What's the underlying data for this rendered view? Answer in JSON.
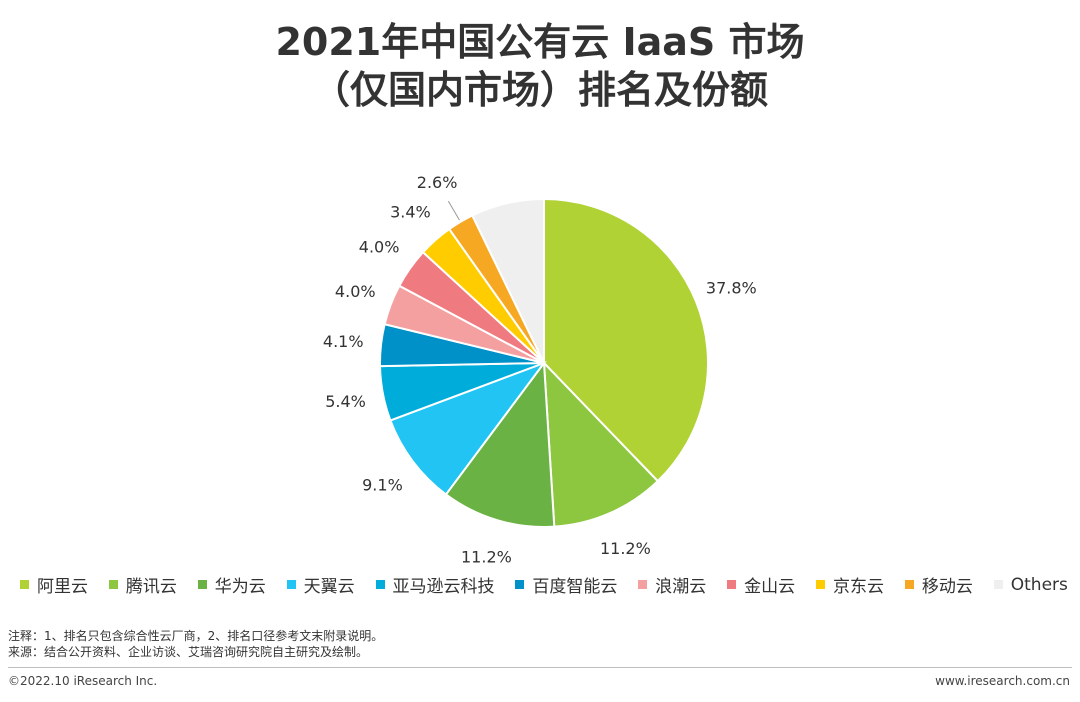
{
  "title": {
    "line1": "2021年中国公有云 IaaS 市场",
    "line2": "（仅国内市场）排名及份额"
  },
  "chart_data": {
    "type": "pie",
    "start_angle_deg": 0,
    "direction": "clockwise",
    "series": [
      {
        "name": "阿里云",
        "value": 37.8,
        "label": "37.8%",
        "color": "#b0d234"
      },
      {
        "name": "腾讯云",
        "value": 11.2,
        "label": "11.2%",
        "color": "#8dc63f"
      },
      {
        "name": "华为云",
        "value": 11.2,
        "label": "11.2%",
        "color": "#6bb244"
      },
      {
        "name": "天翼云",
        "value": 9.1,
        "label": "9.1%",
        "color": "#21c4f2"
      },
      {
        "name": "亚马逊云科技",
        "value": 5.4,
        "label": "5.4%",
        "color": "#00acd9"
      },
      {
        "name": "百度智能云",
        "value": 4.1,
        "label": "4.1%",
        "color": "#0091c8"
      },
      {
        "name": "浪潮云",
        "value": 4.0,
        "label": "4.0%",
        "color": "#f4a0a0"
      },
      {
        "name": "金山云",
        "value": 4.0,
        "label": "4.0%",
        "color": "#ef7a80"
      },
      {
        "name": "京东云",
        "value": 3.4,
        "label": "3.4%",
        "color": "#ffcc00"
      },
      {
        "name": "移动云",
        "value": 2.6,
        "label": "2.6%",
        "color": "#f7a823"
      },
      {
        "name": "Others",
        "value": 7.2,
        "label": "",
        "color": "#efefef"
      }
    ]
  },
  "notes": {
    "line1": "注释：1、排名只包含综合性云厂商，2、排名口径参考文末附录说明。",
    "line2": "来源：结合公开资料、企业访谈、艾瑞咨询研究院自主研究及绘制。"
  },
  "footer": {
    "copyright": "©2022.10 iResearch Inc.",
    "url": "www.iresearch.com.cn"
  }
}
